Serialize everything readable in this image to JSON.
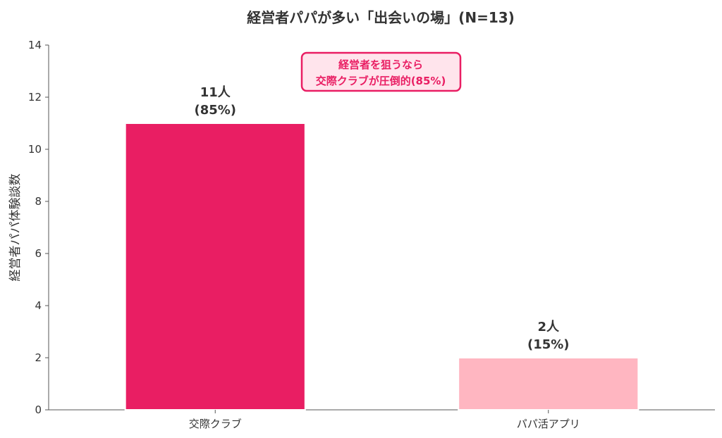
{
  "chart_data": {
    "type": "bar",
    "title": "経営者パパが多い「出会いの場」(N=13)",
    "xlabel": "",
    "ylabel": "経営者パパ体験談数",
    "categories": [
      "交際クラブ",
      "パパ活アプリ"
    ],
    "values": [
      11,
      2
    ],
    "percent_labels": [
      "(85%)",
      "(15%)"
    ],
    "count_labels": [
      "11人",
      "2人"
    ],
    "colors": [
      "#E91E63",
      "#FFB6C1"
    ],
    "ylim": [
      0,
      14
    ],
    "yticks": [
      0,
      2,
      4,
      6,
      8,
      10,
      12,
      14
    ],
    "grid": false,
    "annotation": {
      "lines": [
        "経営者を狙うなら",
        "交際クラブが圧倒的(85%)"
      ],
      "text_color": "#E91E63",
      "border_color": "#E91E63",
      "fill_color": "#FFE4EC"
    }
  }
}
